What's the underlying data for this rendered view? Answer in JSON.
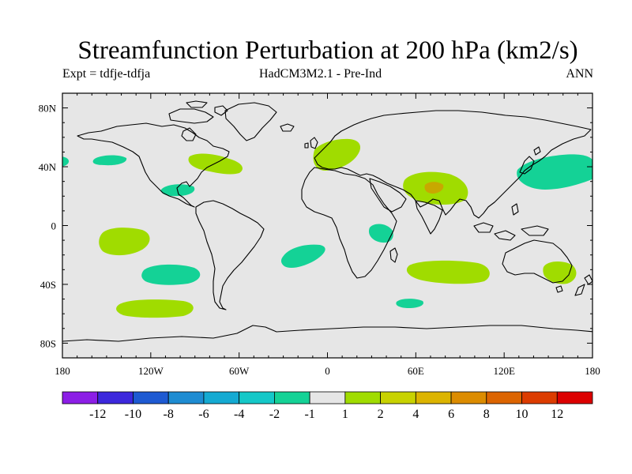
{
  "title": "Streamfunction Perturbation at 200 hPa (km2/s)",
  "subtitle_left": "Expt = tdfje-tdfja",
  "subtitle_center": "HadCM3M2.1 - Pre-Ind",
  "subtitle_right": "ANN",
  "map": {
    "projection": "cylindrical equidistant",
    "land_color": "#e6e6e6",
    "lon_range": [
      -180,
      180
    ],
    "lat_range": [
      -90,
      90
    ],
    "x_ticks": [
      {
        "lon": -180,
        "label": "180"
      },
      {
        "lon": -120,
        "label": "120W"
      },
      {
        "lon": -60,
        "label": "60W"
      },
      {
        "lon": 0,
        "label": "0"
      },
      {
        "lon": 60,
        "label": "60E"
      },
      {
        "lon": 120,
        "label": "120E"
      },
      {
        "lon": 180,
        "label": "180"
      }
    ],
    "y_ticks": [
      {
        "lat": 80,
        "label": "80N"
      },
      {
        "lat": 40,
        "label": "40N"
      },
      {
        "lat": 0,
        "label": "0"
      },
      {
        "lat": -40,
        "label": "40S"
      },
      {
        "lat": -80,
        "label": "80S"
      }
    ]
  },
  "colorbar": {
    "colors": [
      "#8c1ee6",
      "#3c28dc",
      "#1e5ad2",
      "#1e8cd2",
      "#14aad2",
      "#14c8c8",
      "#14d296",
      "#e6e6e6",
      "#a0dc00",
      "#c8d200",
      "#dcb400",
      "#dc8c00",
      "#dc6400",
      "#dc3c00",
      "#dc0000"
    ],
    "labels": [
      "-12",
      "-10",
      "-8",
      "-6",
      "-4",
      "-2",
      "-1",
      "1",
      "2",
      "4",
      "6",
      "8",
      "10",
      "12"
    ]
  },
  "chart_data": {
    "type": "contour-map",
    "variable": "Streamfunction perturbation at 200 hPa",
    "units": "km2/s",
    "levels": [
      -12,
      -10,
      -8,
      -6,
      -4,
      -2,
      -1,
      1,
      2,
      4,
      6,
      8,
      10,
      12
    ],
    "anomalies": [
      {
        "name": "north-pacific-east",
        "lon": -160,
        "lat": 42,
        "value_range": [
          -2,
          -1
        ]
      },
      {
        "name": "north-atlantic-west",
        "lon": -70,
        "lat": 40,
        "value_range": [
          1,
          2
        ]
      },
      {
        "name": "caribbean",
        "lon": -85,
        "lat": 23,
        "value_range": [
          -2,
          -1
        ]
      },
      {
        "name": "europe",
        "lon": 10,
        "lat": 45,
        "value_range": [
          1,
          2
        ]
      },
      {
        "name": "south-asia",
        "lon": 75,
        "lat": 26,
        "value_range": [
          1,
          4
        ]
      },
      {
        "name": "south-asia-core",
        "lon": 73,
        "lat": 25,
        "value_range": [
          2,
          4
        ]
      },
      {
        "name": "north-pacific-west",
        "lon": 165,
        "lat": 40,
        "value_range": [
          -2,
          -1
        ]
      },
      {
        "name": "dateline-north-tip",
        "lon": -180,
        "lat": 44,
        "value_range": [
          -2,
          -1
        ]
      },
      {
        "name": "east-africa",
        "lon": 37,
        "lat": -5,
        "value_range": [
          -2,
          -1
        ]
      },
      {
        "name": "south-pacific-tropical",
        "lon": -133,
        "lat": -10,
        "value_range": [
          1,
          2
        ]
      },
      {
        "name": "south-pacific-mid",
        "lon": -125,
        "lat": -33,
        "value_range": [
          -2,
          -1
        ]
      },
      {
        "name": "south-atlantic",
        "lon": -15,
        "lat": -20,
        "value_range": [
          -2,
          -1
        ]
      },
      {
        "name": "southern-indian-ocean",
        "lon": 67,
        "lat": -30,
        "value_range": [
          1,
          2
        ]
      },
      {
        "name": "southeast-australia",
        "lon": 155,
        "lat": -32,
        "value_range": [
          1,
          2
        ]
      },
      {
        "name": "south-africa-south",
        "lon": 38,
        "lat": -53,
        "value_range": [
          -2,
          -1
        ]
      },
      {
        "name": "south-pacific-south",
        "lon": -125,
        "lat": -56,
        "value_range": [
          1,
          2
        ]
      }
    ]
  }
}
